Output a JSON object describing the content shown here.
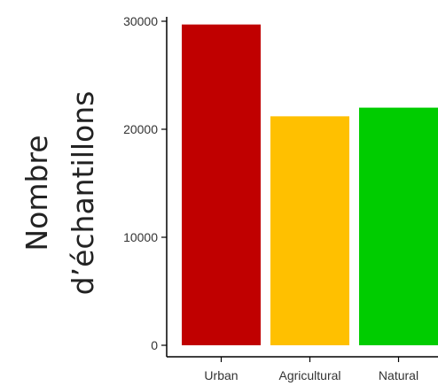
{
  "chart_data": {
    "type": "bar",
    "title": "",
    "xlabel": "",
    "ylabel": [
      "Nombre",
      "d’échantillons"
    ],
    "categories": [
      "Urban",
      "Agricultural",
      "Natural"
    ],
    "values": [
      29700,
      21200,
      22000
    ],
    "colors": [
      "#c00000",
      "#ffc000",
      "#00cc00"
    ],
    "ylim": [
      0,
      30000
    ],
    "yticks": [
      0,
      10000,
      20000,
      30000
    ],
    "ytick_labels": [
      "0",
      "10000",
      "20000",
      "30000"
    ],
    "grid": false,
    "legend": "none"
  }
}
